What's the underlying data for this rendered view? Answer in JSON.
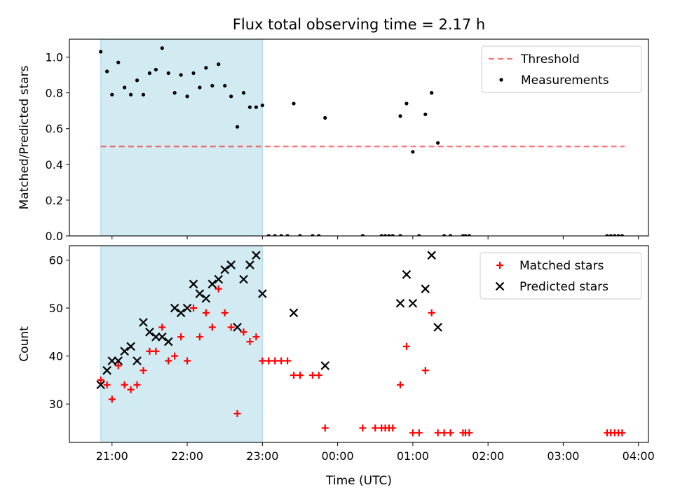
{
  "chart_data": {
    "title": "Flux total observing time = 2.17 h",
    "xlabel": "Time (UTC)",
    "x_ticks": [
      "21:00",
      "22:00",
      "23:00",
      "00:00",
      "01:00",
      "02:00",
      "03:00",
      "04:00"
    ],
    "shaded_interval": [
      "20:51",
      "23:00"
    ],
    "colors": {
      "shade": "#add8e6",
      "threshold": "#ff0000",
      "matched": "#ff0000",
      "predicted": "#000000",
      "measurement": "#000000"
    },
    "panels": [
      {
        "type": "scatter",
        "ylabel": "Matched/Predicted stars",
        "ylim": [
          0,
          1.1
        ],
        "y_ticks": [
          "0.0",
          "0.2",
          "0.4",
          "0.6",
          "0.8",
          "1.0"
        ],
        "legend": {
          "position": "top-right",
          "entries": [
            "Threshold",
            "Measurements"
          ]
        },
        "threshold": {
          "name": "Threshold",
          "value": 0.5,
          "x_start": "20:51",
          "x_end": "03:49"
        },
        "series": [
          {
            "name": "Measurements",
            "points": [
              [
                "20:51",
                1.03
              ],
              [
                "20:56",
                0.92
              ],
              [
                "21:00",
                0.79
              ],
              [
                "21:05",
                0.97
              ],
              [
                "21:10",
                0.83
              ],
              [
                "21:15",
                0.79
              ],
              [
                "21:20",
                0.87
              ],
              [
                "21:25",
                0.79
              ],
              [
                "21:30",
                0.91
              ],
              [
                "21:35",
                0.93
              ],
              [
                "21:40",
                1.05
              ],
              [
                "21:45",
                0.91
              ],
              [
                "21:50",
                0.8
              ],
              [
                "21:55",
                0.9
              ],
              [
                "22:00",
                0.78
              ],
              [
                "22:05",
                0.91
              ],
              [
                "22:10",
                0.83
              ],
              [
                "22:15",
                0.94
              ],
              [
                "22:20",
                0.84
              ],
              [
                "22:25",
                0.96
              ],
              [
                "22:30",
                0.84
              ],
              [
                "22:35",
                0.78
              ],
              [
                "22:40",
                0.61
              ],
              [
                "22:45",
                0.8
              ],
              [
                "22:50",
                0.72
              ],
              [
                "22:55",
                0.72
              ],
              [
                "23:00",
                0.73
              ],
              [
                "23:05",
                0.0
              ],
              [
                "23:10",
                0.0
              ],
              [
                "23:15",
                0.0
              ],
              [
                "23:20",
                0.0
              ],
              [
                "23:25",
                0.74
              ],
              [
                "23:30",
                0.0
              ],
              [
                "23:40",
                0.0
              ],
              [
                "23:45",
                0.0
              ],
              [
                "23:50",
                0.66
              ],
              [
                "00:20",
                0.0
              ],
              [
                "00:20",
                0.0
              ],
              [
                "00:35",
                0.0
              ],
              [
                "00:38",
                0.0
              ],
              [
                "00:41",
                0.0
              ],
              [
                "00:44",
                0.0
              ],
              [
                "00:50",
                0.67
              ],
              [
                "00:50",
                0.0
              ],
              [
                "00:55",
                0.74
              ],
              [
                "01:00",
                0.47
              ],
              [
                "01:05",
                0.0
              ],
              [
                "01:10",
                0.68
              ],
              [
                "01:15",
                0.8
              ],
              [
                "01:20",
                0.52
              ],
              [
                "01:25",
                0.0
              ],
              [
                "01:30",
                0.0
              ],
              [
                "01:40",
                0.0
              ],
              [
                "01:42",
                0.0
              ],
              [
                "01:45",
                0.0
              ],
              [
                "03:35",
                0.0
              ],
              [
                "03:38",
                0.0
              ],
              [
                "03:41",
                0.0
              ],
              [
                "03:44",
                0.0
              ],
              [
                "03:47",
                0.0
              ]
            ]
          }
        ]
      },
      {
        "type": "scatter",
        "ylabel": "Count",
        "ylim": [
          22,
          63
        ],
        "y_ticks": [
          "30",
          "40",
          "50",
          "60"
        ],
        "legend": {
          "position": "top-right",
          "entries": [
            "Matched stars",
            "Predicted stars"
          ]
        },
        "series": [
          {
            "name": "Matched stars",
            "marker": "plus",
            "points": [
              [
                "20:51",
                35
              ],
              [
                "20:56",
                34
              ],
              [
                "21:00",
                31
              ],
              [
                "21:05",
                38
              ],
              [
                "21:10",
                34
              ],
              [
                "21:15",
                33
              ],
              [
                "21:20",
                34
              ],
              [
                "21:25",
                37
              ],
              [
                "21:30",
                41
              ],
              [
                "21:35",
                41
              ],
              [
                "21:40",
                46
              ],
              [
                "21:45",
                39
              ],
              [
                "21:50",
                40
              ],
              [
                "21:55",
                44
              ],
              [
                "22:00",
                39
              ],
              [
                "22:05",
                50
              ],
              [
                "22:10",
                44
              ],
              [
                "22:15",
                49
              ],
              [
                "22:20",
                46
              ],
              [
                "22:25",
                54
              ],
              [
                "22:30",
                49
              ],
              [
                "22:35",
                46
              ],
              [
                "22:40",
                28
              ],
              [
                "22:45",
                45
              ],
              [
                "22:50",
                43
              ],
              [
                "22:55",
                44
              ],
              [
                "23:00",
                39
              ],
              [
                "23:05",
                39
              ],
              [
                "23:10",
                39
              ],
              [
                "23:15",
                39
              ],
              [
                "23:20",
                39
              ],
              [
                "23:25",
                36
              ],
              [
                "23:30",
                36
              ],
              [
                "23:40",
                36
              ],
              [
                "23:45",
                36
              ],
              [
                "23:50",
                25
              ],
              [
                "00:20",
                25
              ],
              [
                "00:30",
                25
              ],
              [
                "00:35",
                25
              ],
              [
                "00:38",
                25
              ],
              [
                "00:41",
                25
              ],
              [
                "00:44",
                25
              ],
              [
                "00:50",
                34
              ],
              [
                "00:55",
                42
              ],
              [
                "01:00",
                24
              ],
              [
                "01:05",
                24
              ],
              [
                "01:10",
                37
              ],
              [
                "01:15",
                49
              ],
              [
                "01:20",
                24
              ],
              [
                "01:25",
                24
              ],
              [
                "01:30",
                24
              ],
              [
                "01:40",
                24
              ],
              [
                "01:42",
                24
              ],
              [
                "01:45",
                24
              ],
              [
                "03:35",
                24
              ],
              [
                "03:38",
                24
              ],
              [
                "03:41",
                24
              ],
              [
                "03:44",
                24
              ],
              [
                "03:47",
                24
              ]
            ]
          },
          {
            "name": "Predicted stars",
            "marker": "x",
            "points": [
              [
                "20:51",
                34
              ],
              [
                "20:56",
                37
              ],
              [
                "21:00",
                39
              ],
              [
                "21:05",
                39
              ],
              [
                "21:10",
                41
              ],
              [
                "21:15",
                42
              ],
              [
                "21:20",
                39
              ],
              [
                "21:25",
                47
              ],
              [
                "21:30",
                45
              ],
              [
                "21:35",
                44
              ],
              [
                "21:40",
                44
              ],
              [
                "21:45",
                43
              ],
              [
                "21:50",
                50
              ],
              [
                "21:55",
                49
              ],
              [
                "22:00",
                50
              ],
              [
                "22:05",
                55
              ],
              [
                "22:10",
                53
              ],
              [
                "22:15",
                52
              ],
              [
                "22:20",
                55
              ],
              [
                "22:25",
                56
              ],
              [
                "22:30",
                58
              ],
              [
                "22:35",
                59
              ],
              [
                "22:40",
                46
              ],
              [
                "22:45",
                56
              ],
              [
                "22:50",
                59
              ],
              [
                "22:55",
                61
              ],
              [
                "23:00",
                53
              ],
              [
                "23:25",
                49
              ],
              [
                "23:50",
                38
              ],
              [
                "00:50",
                51
              ],
              [
                "00:55",
                57
              ],
              [
                "01:00",
                51
              ],
              [
                "01:10",
                54
              ],
              [
                "01:15",
                61
              ],
              [
                "01:20",
                46
              ]
            ]
          }
        ]
      }
    ]
  }
}
